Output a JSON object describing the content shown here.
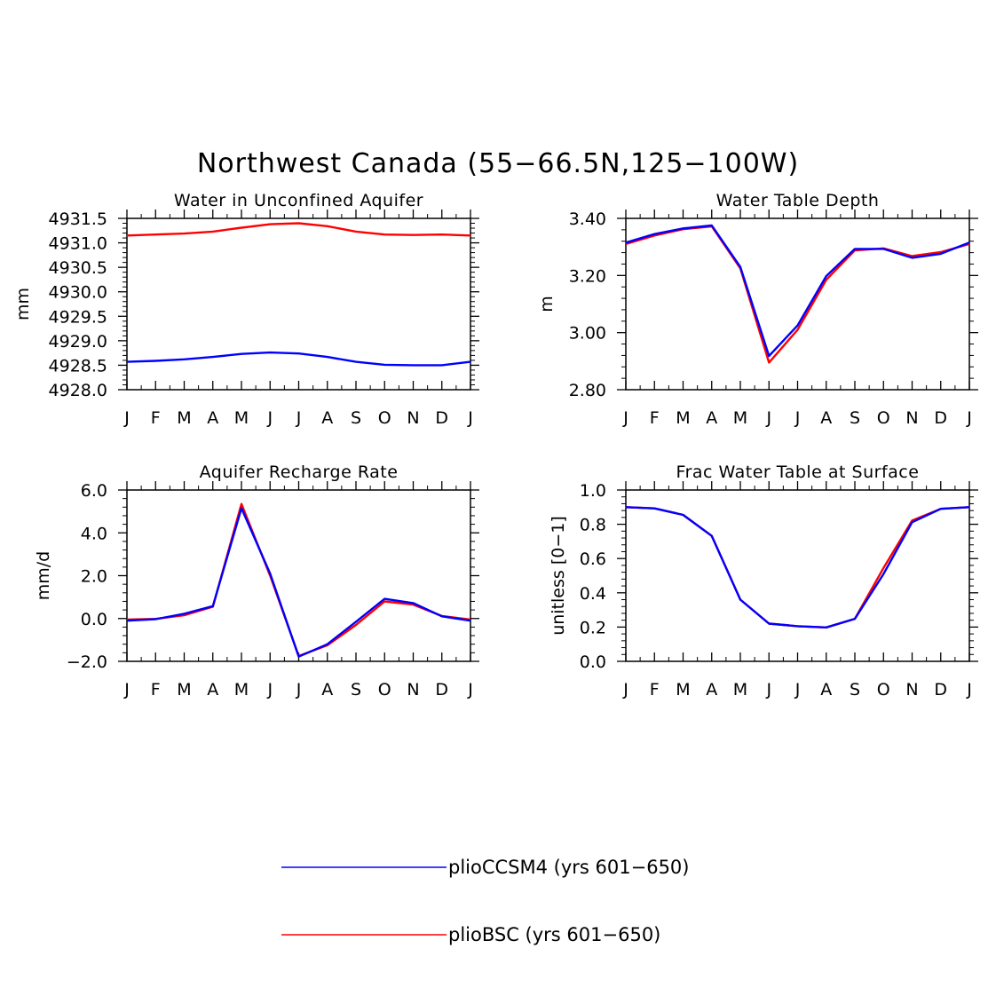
{
  "figure_title": "Northwest Canada (55−66.5N,125−100W)",
  "colors": {
    "pliocCSM4": "#0000ff",
    "plioBSC": "#ff0000",
    "axis": "#000000"
  },
  "legend": [
    {
      "key": "blue",
      "label": "plioCCSM4 (yrs 601−650)",
      "color": "#0000ff"
    },
    {
      "key": "red",
      "label": "plioBSC (yrs 601−650)",
      "color": "#ff0000"
    }
  ],
  "chart_data": [
    {
      "type": "line",
      "title": "Water in Unconfined Aquifer",
      "xlabel": "",
      "ylabel": "mm",
      "categories": [
        "J",
        "F",
        "M",
        "A",
        "M",
        "J",
        "J",
        "A",
        "S",
        "O",
        "N",
        "D",
        "J"
      ],
      "ylim": [
        4928.0,
        4931.5
      ],
      "yticks": [
        "4928.0",
        "4928.5",
        "4929.0",
        "4929.5",
        "4930.0",
        "4930.5",
        "4931.0",
        "4931.5"
      ],
      "ytick_values": [
        4928.0,
        4928.5,
        4929.0,
        4929.5,
        4930.0,
        4930.5,
        4931.0,
        4931.5
      ],
      "series": [
        {
          "name": "plioBSC (yrs 601−650)",
          "color": "#ff0000",
          "values": [
            4931.15,
            4931.17,
            4931.19,
            4931.23,
            4931.31,
            4931.38,
            4931.4,
            4931.34,
            4931.23,
            4931.17,
            4931.16,
            4931.17,
            4931.15
          ]
        },
        {
          "name": "plioCCSM4 (yrs 601−650)",
          "color": "#0000ff",
          "values": [
            4928.57,
            4928.59,
            4928.62,
            4928.67,
            4928.73,
            4928.76,
            4928.74,
            4928.67,
            4928.57,
            4928.51,
            4928.5,
            4928.5,
            4928.57
          ]
        }
      ]
    },
    {
      "type": "line",
      "title": "Water Table Depth",
      "xlabel": "",
      "ylabel": "m",
      "categories": [
        "J",
        "F",
        "M",
        "A",
        "M",
        "J",
        "J",
        "A",
        "S",
        "O",
        "N",
        "D",
        "J"
      ],
      "ylim": [
        2.8,
        3.4
      ],
      "yticks": [
        "2.80",
        "3.00",
        "3.20",
        "3.40"
      ],
      "ytick_values": [
        2.8,
        3.0,
        3.2,
        3.4
      ],
      "series": [
        {
          "name": "plioBSC (yrs 601−650)",
          "color": "#ff0000",
          "values": [
            3.31,
            3.34,
            3.362,
            3.372,
            3.225,
            2.895,
            3.01,
            3.185,
            3.288,
            3.295,
            3.268,
            3.282,
            3.31
          ]
        },
        {
          "name": "plioCCSM4 (yrs 601−650)",
          "color": "#0000ff",
          "values": [
            3.315,
            3.345,
            3.365,
            3.375,
            3.23,
            2.918,
            3.025,
            3.198,
            3.293,
            3.293,
            3.262,
            3.276,
            3.315
          ]
        }
      ]
    },
    {
      "type": "line",
      "title": "Aquifer Recharge Rate",
      "xlabel": "",
      "ylabel": "mm/d",
      "categories": [
        "J",
        "F",
        "M",
        "A",
        "M",
        "J",
        "J",
        "A",
        "S",
        "O",
        "N",
        "D",
        "J"
      ],
      "ylim": [
        -2.0,
        6.0
      ],
      "yticks": [
        "−2.0",
        "0.0",
        "2.0",
        "4.0",
        "6.0"
      ],
      "ytick_values": [
        -2.0,
        0.0,
        2.0,
        4.0,
        6.0
      ],
      "series": [
        {
          "name": "plioBSC (yrs 601−650)",
          "color": "#ff0000",
          "values": [
            -0.05,
            -0.02,
            0.15,
            0.55,
            5.35,
            2.0,
            -1.75,
            -1.25,
            -0.3,
            0.8,
            0.65,
            0.12,
            -0.05
          ]
        },
        {
          "name": "plioCCSM4 (yrs 601−650)",
          "color": "#0000ff",
          "values": [
            -0.1,
            -0.03,
            0.22,
            0.58,
            5.15,
            2.1,
            -1.78,
            -1.2,
            -0.15,
            0.92,
            0.72,
            0.1,
            -0.1
          ]
        }
      ]
    },
    {
      "type": "line",
      "title": "Frac Water Table at Surface",
      "xlabel": "",
      "ylabel": "unitless [0−1]",
      "categories": [
        "J",
        "F",
        "M",
        "A",
        "M",
        "J",
        "J",
        "A",
        "S",
        "O",
        "N",
        "D",
        "J"
      ],
      "ylim": [
        0.0,
        1.0
      ],
      "yticks": [
        "0.0",
        "0.2",
        "0.4",
        "0.6",
        "0.8",
        "1.0"
      ],
      "ytick_values": [
        0.0,
        0.2,
        0.4,
        0.6,
        0.8,
        1.0
      ],
      "series": [
        {
          "name": "plioBSC (yrs 601−650)",
          "color": "#ff0000",
          "values": [
            0.9,
            0.893,
            0.855,
            0.732,
            0.36,
            0.22,
            0.205,
            0.198,
            0.248,
            0.545,
            0.822,
            0.89,
            0.9
          ]
        },
        {
          "name": "plioCCSM4 (yrs 601−650)",
          "color": "#0000ff",
          "values": [
            0.9,
            0.893,
            0.855,
            0.732,
            0.36,
            0.22,
            0.205,
            0.198,
            0.248,
            0.51,
            0.812,
            0.89,
            0.9
          ]
        }
      ]
    }
  ]
}
